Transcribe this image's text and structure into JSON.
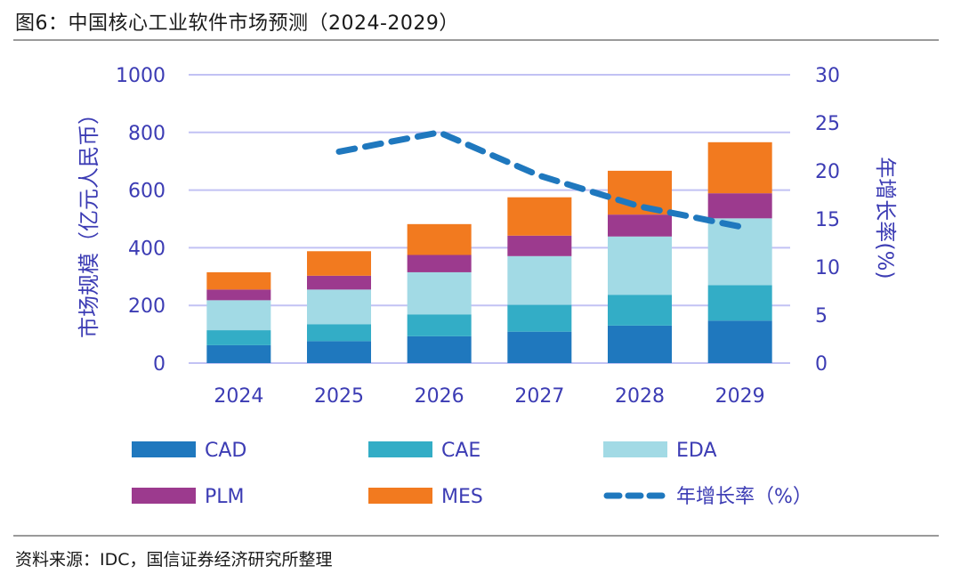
{
  "header": {
    "figure_title": "图6：中国核心工业软件市场预测（2024-2029）"
  },
  "footer": {
    "source": "资料来源：IDC，国信证券经济研究所整理"
  },
  "chart_data": {
    "type": "bar",
    "stacked": true,
    "title": "中国核心工业软件市场预测（2024-2029）",
    "categories": [
      "2024",
      "2025",
      "2026",
      "2027",
      "2028",
      "2029"
    ],
    "series": [
      {
        "name": "CAD",
        "type": "bar",
        "axis": "left",
        "color": "#1f78be",
        "values": [
          62,
          76,
          93,
          109,
          130,
          147
        ]
      },
      {
        "name": "CAE",
        "type": "bar",
        "axis": "left",
        "color": "#33adc6",
        "values": [
          52,
          59,
          76,
          93,
          107,
          123
        ]
      },
      {
        "name": "EDA",
        "type": "bar",
        "axis": "left",
        "color": "#a2dae5",
        "values": [
          104,
          120,
          146,
          169,
          202,
          232
        ]
      },
      {
        "name": "PLM",
        "type": "bar",
        "axis": "left",
        "color": "#9c3a8e",
        "values": [
          37,
          48,
          60,
          71,
          76,
          87
        ]
      },
      {
        "name": "MES",
        "type": "bar",
        "axis": "left",
        "color": "#f27a1f",
        "values": [
          60,
          85,
          107,
          133,
          152,
          177
        ]
      },
      {
        "name": "年增长率（%）",
        "type": "line",
        "style": "dashed",
        "axis": "right",
        "color": "#1f78be",
        "values": [
          null,
          22.0,
          24.0,
          19.5,
          16.3,
          14.2
        ]
      }
    ],
    "ylabel": "市场规模（亿元人民币）",
    "ylabel_right": "年增长率(%)",
    "ylim": [
      0,
      1000
    ],
    "ylim_right": [
      0,
      30
    ],
    "yticks": [
      "0",
      "200",
      "400",
      "600",
      "800",
      "1000"
    ],
    "yticks_right": [
      "0",
      "5",
      "10",
      "15",
      "20",
      "25",
      "30"
    ],
    "grid": true,
    "legend_position": "bottom",
    "legend": [
      "CAD",
      "CAE",
      "EDA",
      "PLM",
      "MES",
      "年增长率（%）"
    ],
    "axis_color": "#3c3cb4",
    "grid_color": "#c2c2f4"
  }
}
